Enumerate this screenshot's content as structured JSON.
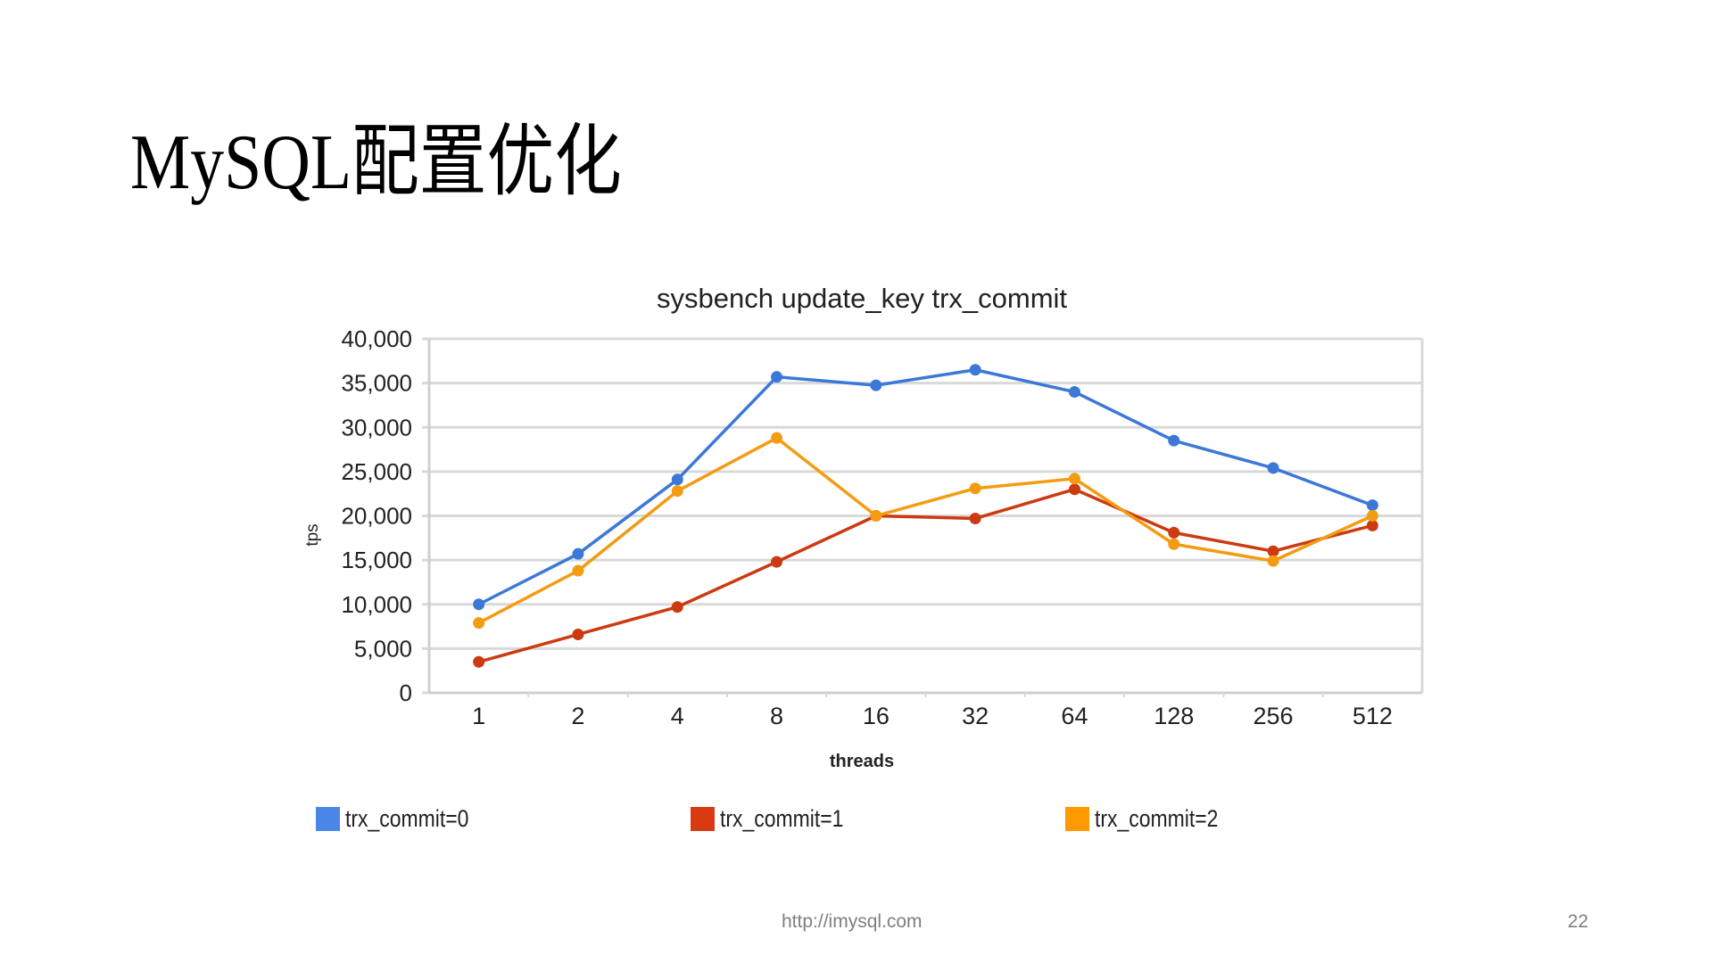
{
  "slide": {
    "title": "MySQL配置优化",
    "footer_url": "http://imysql.com",
    "page_number": "22"
  },
  "chart_data": {
    "type": "line",
    "title": "sysbench update_key trx_commit",
    "xlabel": "threads",
    "ylabel": "tps",
    "categories": [
      "1",
      "2",
      "4",
      "8",
      "16",
      "32",
      "64",
      "128",
      "256",
      "512"
    ],
    "ylim": [
      0,
      40000
    ],
    "yticks": [
      0,
      5000,
      10000,
      15000,
      20000,
      25000,
      30000,
      35000,
      40000
    ],
    "ytick_labels": [
      "0",
      "5,000",
      "10,000",
      "15,000",
      "20,000",
      "25,000",
      "30,000",
      "35,000",
      "40,000"
    ],
    "grid": true,
    "legend_position": "bottom",
    "series": [
      {
        "name": "trx_commit=0",
        "color": "#3c78d8",
        "values": [
          10000,
          15700,
          24100,
          35700,
          34750,
          36500,
          34000,
          28500,
          25400,
          21200
        ]
      },
      {
        "name": "trx_commit=1",
        "color": "#cc3a12",
        "values": [
          3500,
          6600,
          9700,
          14800,
          20000,
          19700,
          23000,
          18100,
          16000,
          18900
        ]
      },
      {
        "name": "trx_commit=2",
        "color": "#f39c12",
        "values": [
          7900,
          13800,
          22800,
          28800,
          20000,
          23100,
          24200,
          16800,
          14900,
          20000
        ]
      }
    ]
  }
}
